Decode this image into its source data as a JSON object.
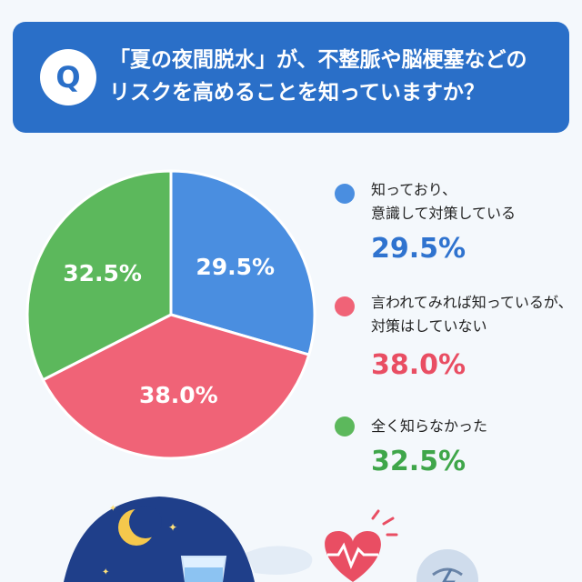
{
  "question": {
    "badge": "Q",
    "line1": "「夏の夜間脱水」が、不整脈や脳梗塞などの",
    "line2": "リスクを高めることを知っていますか？"
  },
  "chart_data": {
    "type": "pie",
    "slices": [
      {
        "label_lines": [
          "知っており、",
          "意識して対策している"
        ],
        "value": 29.5,
        "display": "29.5%",
        "color": "#4a8ee0"
      },
      {
        "label_lines": [
          "言われてみれば知っているが、",
          "対策はしていない"
        ],
        "value": 38.0,
        "display": "38.0%",
        "color": "#f06377"
      },
      {
        "label_lines": [
          "全く知らなかった"
        ],
        "value": 32.5,
        "display": "32.5%",
        "color": "#5cb85c"
      }
    ]
  },
  "colors": {
    "header": "#2a6fc8",
    "blue_text": "#2f73cf",
    "red_text": "#e94e63",
    "green_text": "#3fa64a"
  },
  "icons": [
    "moon-icon",
    "water-glass-icon",
    "heart-pulse-icon",
    "brain-icon"
  ]
}
